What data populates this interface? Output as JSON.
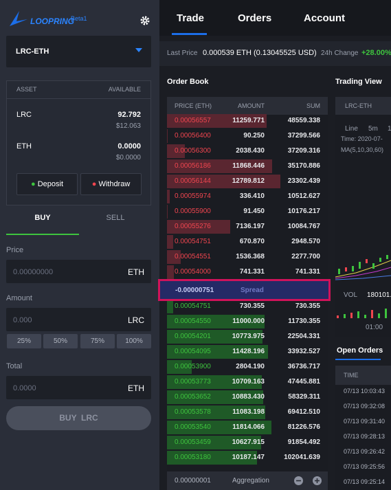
{
  "sidebar": {
    "logo": "LOOPRING",
    "badge": "Beta1",
    "market": "LRC-ETH",
    "assets": {
      "header": [
        "ASSET",
        "AVAILABLE"
      ],
      "rows": [
        {
          "asset": "LRC",
          "amount": "92.792",
          "usd": "$12.063"
        },
        {
          "asset": "ETH",
          "amount": "0.0000",
          "usd": "$0.0000"
        }
      ],
      "deposit": "Deposit",
      "withdraw": "Withdraw"
    },
    "tabs": [
      "BUY",
      "SELL"
    ],
    "price": {
      "label": "Price",
      "placeholder": "0.00000000",
      "unit": "ETH"
    },
    "amount": {
      "label": "Amount",
      "placeholder": "0.000",
      "unit": "LRC"
    },
    "percents": [
      "25%",
      "50%",
      "75%",
      "100%"
    ],
    "total": {
      "label": "Total",
      "placeholder": "0.0000",
      "unit": "ETH"
    },
    "submit": "BUY  LRC"
  },
  "nav": [
    "Trade",
    "Orders",
    "Account"
  ],
  "ticker": {
    "last_price_label": "Last Price",
    "last_price": "0.000539 ETH (0.13045525 USD)",
    "change_label": "24h Change",
    "change": "+28.00%"
  },
  "order_book": {
    "title": "Order Book",
    "columns": [
      "PRICE (ETH)",
      "AMOUNT",
      "SUM"
    ],
    "asks": [
      [
        "0.00056557",
        "11259.771",
        "48559.338"
      ],
      [
        "0.00056400",
        "90.250",
        "37299.566"
      ],
      [
        "0.00056300",
        "2038.430",
        "37209.316"
      ],
      [
        "0.00056186",
        "11868.446",
        "35170.886"
      ],
      [
        "0.00056144",
        "12789.812",
        "23302.439"
      ],
      [
        "0.00055974",
        "336.410",
        "10512.627"
      ],
      [
        "0.00055900",
        "91.450",
        "10176.217"
      ],
      [
        "0.00055276",
        "7136.197",
        "10084.767"
      ],
      [
        "0.00054751",
        "670.870",
        "2948.570"
      ],
      [
        "0.00054551",
        "1536.368",
        "2277.700"
      ],
      [
        "0.00054000",
        "741.331",
        "741.331"
      ]
    ],
    "spread": "-0.00000751",
    "spread_label": "Spread",
    "bids": [
      [
        "0.00054751",
        "730.355",
        "730.355"
      ],
      [
        "0.00054550",
        "11000.000",
        "11730.355"
      ],
      [
        "0.00054201",
        "10773.975",
        "22504.331"
      ],
      [
        "0.00054095",
        "11428.196",
        "33932.527"
      ],
      [
        "0.00053900",
        "2804.190",
        "36736.717"
      ],
      [
        "0.00053773",
        "10709.163",
        "47445.881"
      ],
      [
        "0.00053652",
        "10883.430",
        "58329.311"
      ],
      [
        "0.00053578",
        "11083.198",
        "69412.510"
      ],
      [
        "0.00053540",
        "11814.066",
        "81226.576"
      ],
      [
        "0.00053459",
        "10627.915",
        "91854.492"
      ],
      [
        "0.00053180",
        "10187.147",
        "102041.639"
      ]
    ],
    "aggregation": "0.00000001",
    "aggregation_label": "Aggregation"
  },
  "trading_view": {
    "title": "Trading View",
    "market": "LRC-ETH",
    "intervals": [
      "Line",
      "5m",
      "1"
    ],
    "time": "Time: 2020-07-",
    "ma": "MA(5,10,30,60)",
    "vol_label": "VOL",
    "vol": "180101.",
    "time_axis": "01:00"
  },
  "open_orders": {
    "title": "Open Orders",
    "column": "TIME",
    "times": [
      "07/13 10:03:43",
      "07/13 09:32:08",
      "07/13 09:31:40",
      "07/13 09:28:13",
      "07/13 09:26:42",
      "07/13 09:25:56",
      "07/13 09:25:14"
    ]
  }
}
